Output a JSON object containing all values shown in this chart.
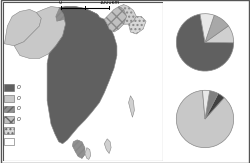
{
  "background_color": "#ffffff",
  "map_bg": "#ffffff",
  "pie1": {
    "values": [
      72,
      10,
      10,
      8
    ],
    "colors": [
      "#606060",
      "#d0d0d0",
      "#a8a8a8",
      "#e8e8e8"
    ],
    "startangle": 100
  },
  "pie2": {
    "values": [
      87,
      4,
      5,
      4
    ],
    "colors": [
      "#c8c8c8",
      "#404040",
      "#808080",
      "#e8e8e8"
    ],
    "startangle": 95
  }
}
